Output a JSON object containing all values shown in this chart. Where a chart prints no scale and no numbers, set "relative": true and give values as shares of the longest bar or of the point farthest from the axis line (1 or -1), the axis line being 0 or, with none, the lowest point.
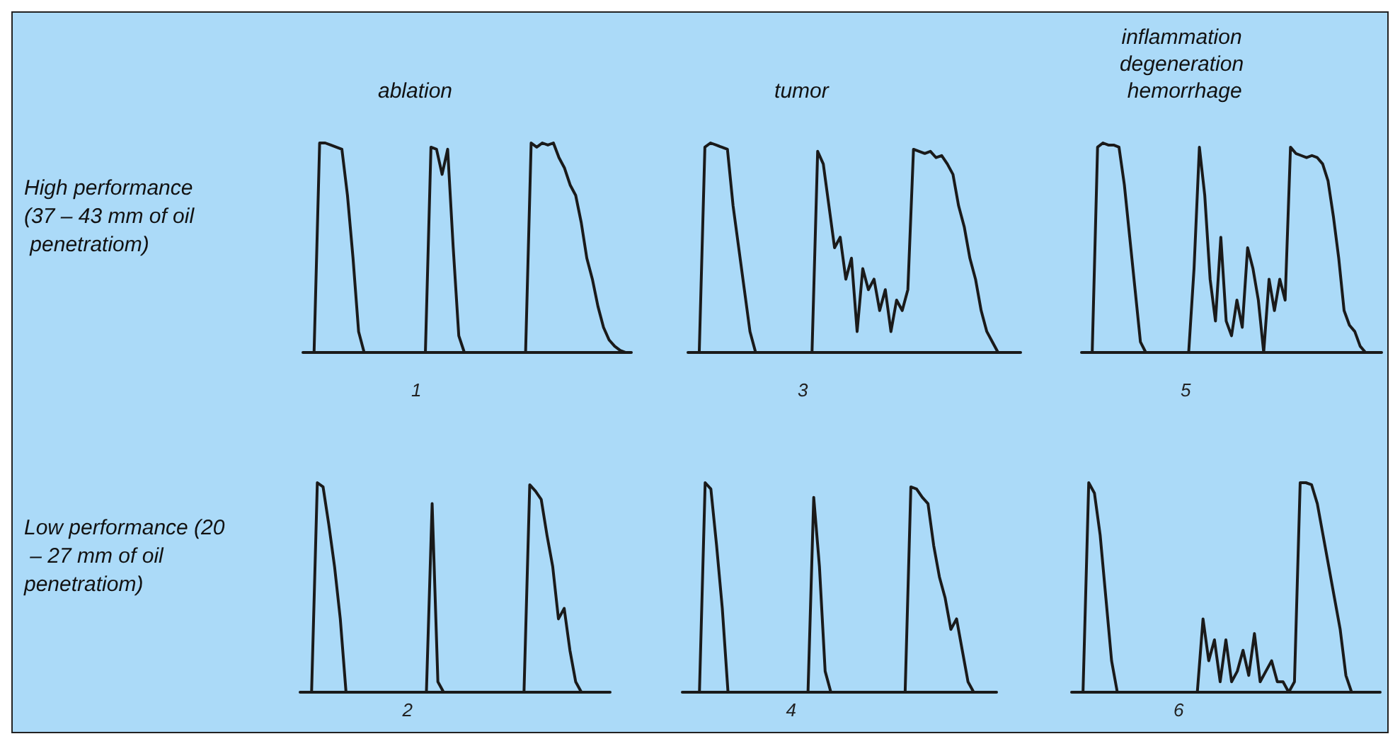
{
  "chart_data": [
    {
      "type": "line",
      "relative": true,
      "color": "#1a1a1a",
      "title": "ablation",
      "ylabel": "High performance (37 – 43 mm of oil penetratiom)",
      "xlabel": "1",
      "categories": [
        null,
        null,
        null,
        null,
        null,
        null,
        null,
        null,
        null,
        null,
        null,
        null,
        null,
        null,
        null,
        null,
        null,
        null,
        null,
        null,
        null,
        null,
        null,
        null,
        null,
        null,
        null,
        null,
        null,
        null,
        null,
        null,
        null,
        null,
        null,
        null,
        null,
        null,
        null,
        null,
        null,
        null,
        null,
        null,
        null,
        null,
        null,
        null,
        null,
        null,
        null,
        null,
        null,
        null,
        null,
        null,
        null,
        null,
        null,
        null
      ],
      "values": [
        0,
        0,
        0,
        1,
        1,
        0.99,
        0.98,
        0.97,
        0.75,
        0.45,
        0.1,
        0,
        0,
        0,
        0,
        0,
        0,
        0,
        0,
        0,
        0,
        0,
        0,
        0.98,
        0.97,
        0.85,
        0.97,
        0.5,
        0.08,
        0,
        0,
        0,
        0,
        0,
        0,
        0,
        0,
        0,
        0,
        0,
        0,
        1,
        0.98,
        1,
        0.99,
        1,
        0.93,
        0.88,
        0.8,
        0.75,
        0.62,
        0.45,
        0.35,
        0.22,
        0.12,
        0.06,
        0.03,
        0.01,
        0,
        0
      ]
    },
    {
      "type": "line",
      "relative": true,
      "color": "#1a1a1a",
      "title": "tumor",
      "xlabel": "3",
      "categories": [
        null,
        null,
        null,
        null,
        null,
        null,
        null,
        null,
        null,
        null,
        null,
        null,
        null,
        null,
        null,
        null,
        null,
        null,
        null,
        null,
        null,
        null,
        null,
        null,
        null,
        null,
        null,
        null,
        null,
        null,
        null,
        null,
        null,
        null,
        null,
        null,
        null,
        null,
        null,
        null,
        null,
        null,
        null,
        null,
        null,
        null,
        null,
        null,
        null,
        null,
        null,
        null,
        null,
        null,
        null,
        null,
        null,
        null,
        null,
        null
      ],
      "values": [
        0,
        0,
        0,
        0.98,
        1,
        0.99,
        0.98,
        0.97,
        0.7,
        0.5,
        0.3,
        0.1,
        0,
        0,
        0,
        0,
        0,
        0,
        0,
        0,
        0,
        0,
        0,
        0.96,
        0.9,
        0.7,
        0.5,
        0.55,
        0.35,
        0.45,
        0.1,
        0.4,
        0.3,
        0.35,
        0.2,
        0.3,
        0.1,
        0.25,
        0.2,
        0.3,
        0.97,
        0.96,
        0.95,
        0.96,
        0.93,
        0.94,
        0.9,
        0.85,
        0.7,
        0.6,
        0.45,
        0.35,
        0.2,
        0.1,
        0.05,
        0,
        0,
        0,
        0,
        0
      ]
    },
    {
      "type": "line",
      "relative": true,
      "color": "#1a1a1a",
      "title": "inflammation degeneration hemorrhage",
      "xlabel": "5",
      "categories": [
        null,
        null,
        null,
        null,
        null,
        null,
        null,
        null,
        null,
        null,
        null,
        null,
        null,
        null,
        null,
        null,
        null,
        null,
        null,
        null,
        null,
        null,
        null,
        null,
        null,
        null,
        null,
        null,
        null,
        null,
        null,
        null,
        null,
        null,
        null,
        null,
        null,
        null,
        null,
        null,
        null,
        null,
        null,
        null,
        null,
        null,
        null,
        null,
        null,
        null,
        null,
        null,
        null,
        null,
        null,
        null,
        null
      ],
      "values": [
        0,
        0,
        0,
        0.98,
        1,
        0.99,
        0.99,
        0.98,
        0.8,
        0.55,
        0.3,
        0.05,
        0,
        0,
        0,
        0,
        0,
        0,
        0,
        0,
        0,
        0.4,
        0.98,
        0.75,
        0.35,
        0.15,
        0.55,
        0.15,
        0.08,
        0.25,
        0.12,
        0.5,
        0.4,
        0.25,
        0,
        0.35,
        0.2,
        0.35,
        0.25,
        0.98,
        0.95,
        0.94,
        0.93,
        0.94,
        0.93,
        0.9,
        0.82,
        0.65,
        0.45,
        0.2,
        0.13,
        0.1,
        0.03,
        0,
        0,
        0,
        0
      ]
    },
    {
      "type": "line",
      "relative": true,
      "color": "#1a1a1a",
      "ylabel": "Low performance (20 – 27 mm of oil penetratiom)",
      "xlabel": "2",
      "categories": [
        null,
        null,
        null,
        null,
        null,
        null,
        null,
        null,
        null,
        null,
        null,
        null,
        null,
        null,
        null,
        null,
        null,
        null,
        null,
        null,
        null,
        null,
        null,
        null,
        null,
        null,
        null,
        null,
        null,
        null,
        null,
        null,
        null,
        null,
        null,
        null,
        null,
        null,
        null,
        null,
        null,
        null,
        null,
        null,
        null,
        null,
        null,
        null,
        null,
        null,
        null,
        null,
        null,
        null,
        null
      ],
      "values": [
        0,
        0,
        0,
        1,
        0.98,
        0.8,
        0.6,
        0.35,
        0,
        0,
        0,
        0,
        0,
        0,
        0,
        0,
        0,
        0,
        0,
        0,
        0,
        0,
        0,
        0.9,
        0.05,
        0,
        0,
        0,
        0,
        0,
        0,
        0,
        0,
        0,
        0,
        0,
        0,
        0,
        0,
        0,
        0.99,
        0.96,
        0.92,
        0.75,
        0.6,
        0.35,
        0.4,
        0.2,
        0.05,
        0,
        0,
        0,
        0,
        0,
        0
      ]
    },
    {
      "type": "line",
      "relative": true,
      "color": "#1a1a1a",
      "xlabel": "4",
      "categories": [
        null,
        null,
        null,
        null,
        null,
        null,
        null,
        null,
        null,
        null,
        null,
        null,
        null,
        null,
        null,
        null,
        null,
        null,
        null,
        null,
        null,
        null,
        null,
        null,
        null,
        null,
        null,
        null,
        null,
        null,
        null,
        null,
        null,
        null,
        null,
        null,
        null,
        null,
        null,
        null,
        null,
        null,
        null,
        null,
        null,
        null,
        null,
        null,
        null,
        null,
        null,
        null,
        null,
        null,
        null,
        null
      ],
      "values": [
        0,
        0,
        0,
        0,
        1,
        0.97,
        0.7,
        0.4,
        0,
        0,
        0,
        0,
        0,
        0,
        0,
        0,
        0,
        0,
        0,
        0,
        0,
        0,
        0,
        0.93,
        0.6,
        0.1,
        0,
        0,
        0,
        0,
        0,
        0,
        0,
        0,
        0,
        0,
        0,
        0,
        0,
        0,
        0.98,
        0.97,
        0.93,
        0.9,
        0.7,
        0.55,
        0.45,
        0.3,
        0.35,
        0.2,
        0.05,
        0,
        0,
        0,
        0,
        0
      ]
    },
    {
      "type": "line",
      "relative": true,
      "color": "#1a1a1a",
      "xlabel": "6",
      "categories": [
        null,
        null,
        null,
        null,
        null,
        null,
        null,
        null,
        null,
        null,
        null,
        null,
        null,
        null,
        null,
        null,
        null,
        null,
        null,
        null,
        null,
        null,
        null,
        null,
        null,
        null,
        null,
        null,
        null,
        null,
        null,
        null,
        null,
        null,
        null,
        null,
        null,
        null,
        null,
        null,
        null,
        null,
        null,
        null,
        null,
        null,
        null,
        null,
        null,
        null,
        null,
        null,
        null,
        null,
        null
      ],
      "values": [
        0,
        0,
        0,
        1,
        0.95,
        0.75,
        0.45,
        0.15,
        0,
        0,
        0,
        0,
        0,
        0,
        0,
        0,
        0,
        0,
        0,
        0,
        0,
        0,
        0,
        0.35,
        0.15,
        0.25,
        0.05,
        0.25,
        0.05,
        0.1,
        0.2,
        0.08,
        0.28,
        0.05,
        0.1,
        0.15,
        0.05,
        0.05,
        0,
        0.05,
        1,
        1,
        0.99,
        0.9,
        0.75,
        0.6,
        0.45,
        0.3,
        0.08,
        0,
        0,
        0,
        0,
        0,
        0
      ]
    }
  ]
}
